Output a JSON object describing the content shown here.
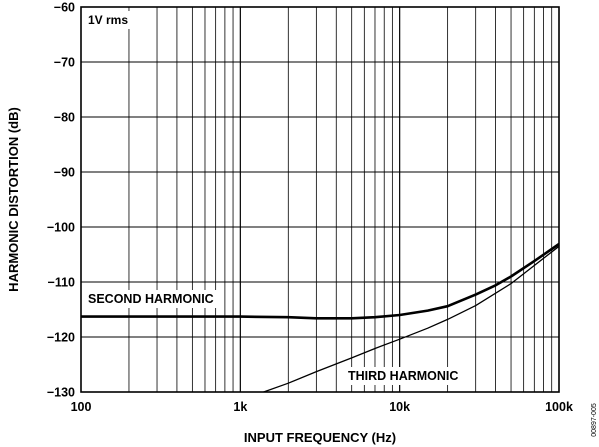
{
  "chart_data": {
    "type": "line",
    "title": "",
    "xlabel": "INPUT FREQUENCY (Hz)",
    "ylabel": "HARMONIC DISTORTION (dB)",
    "x_scale": "log",
    "xlim": [
      100,
      100000
    ],
    "ylim": [
      -130,
      -60
    ],
    "grid": true,
    "x_ticks": [
      100,
      1000,
      10000,
      100000
    ],
    "x_tick_labels": [
      "100",
      "1k",
      "10k",
      "100k"
    ],
    "y_ticks": [
      -60,
      -70,
      -80,
      -90,
      -100,
      -110,
      -120,
      -130
    ],
    "y_tick_labels": [
      "−60",
      "−70",
      "−80",
      "−90",
      "−100",
      "−110",
      "−120",
      "−130"
    ],
    "annotations": {
      "condition": "1V rms",
      "second_harmonic": "SECOND HARMONIC",
      "third_harmonic": "THIRD HARMONIC",
      "figure_id": "00897-005"
    },
    "series": [
      {
        "name": "SECOND HARMONIC",
        "x": [
          100,
          200,
          500,
          1000,
          2000,
          3000,
          5000,
          7000,
          10000,
          15000,
          20000,
          30000,
          40000,
          50000,
          70000,
          100000
        ],
        "y": [
          -116.3,
          -116.3,
          -116.3,
          -116.3,
          -116.4,
          -116.6,
          -116.6,
          -116.4,
          -116.0,
          -115.2,
          -114.4,
          -112.3,
          -110.6,
          -109.0,
          -106.2,
          -103.1
        ]
      },
      {
        "name": "THIRD HARMONIC",
        "x": [
          1400,
          2000,
          3000,
          5000,
          7000,
          10000,
          15000,
          20000,
          30000,
          50000,
          70000,
          100000
        ],
        "y": [
          -130.0,
          -128.4,
          -126.3,
          -123.8,
          -122.1,
          -120.4,
          -118.4,
          -116.8,
          -114.3,
          -110.3,
          -107.0,
          -103.5
        ]
      }
    ]
  }
}
